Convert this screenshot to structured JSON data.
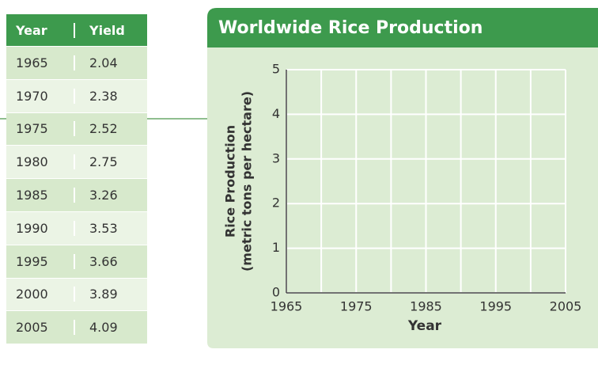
{
  "table": {
    "header": [
      "Year",
      "Yield"
    ],
    "rows": [
      [
        1965,
        2.04
      ],
      [
        1970,
        2.38
      ],
      [
        1975,
        2.52
      ],
      [
        1980,
        2.75
      ],
      [
        1985,
        3.26
      ],
      [
        1990,
        3.53
      ],
      [
        1995,
        3.66
      ],
      [
        2000,
        3.89
      ],
      [
        2005,
        4.09
      ]
    ]
  },
  "chart_data": {
    "type": "empty-grid",
    "title": "Worldwide Rice Production",
    "xlabel": "Year",
    "ylabel": [
      "Rice Production",
      "(metric tons per hectare)"
    ],
    "xlim": [
      1965,
      2005
    ],
    "xticks": [
      1965,
      1975,
      1985,
      1995,
      2005
    ],
    "x_minor_ticks": [
      1970,
      1980,
      1990,
      2000
    ],
    "ylim": [
      0,
      5
    ],
    "yticks": [
      0,
      1,
      2,
      3,
      4,
      5
    ],
    "grid": true
  }
}
